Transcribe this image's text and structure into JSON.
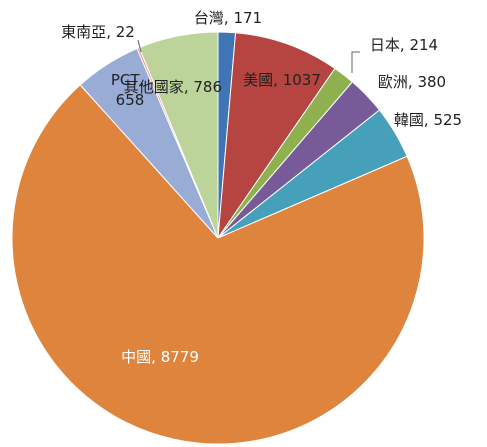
{
  "chart_data": {
    "type": "pie",
    "categories": [
      "台灣",
      "美國",
      "日本",
      "歐洲",
      "韓國",
      "中國",
      "PCT",
      "東南亞",
      "其他國家"
    ],
    "values": [
      171,
      1037,
      214,
      380,
      525,
      8779,
      658,
      22,
      786
    ],
    "colors": [
      "#3f74b5",
      "#b64542",
      "#8eb04f",
      "#775b99",
      "#46a0b9",
      "#de843d",
      "#98acd6",
      "#ec9391",
      "#bcd39a"
    ],
    "label_separator": ", "
  }
}
